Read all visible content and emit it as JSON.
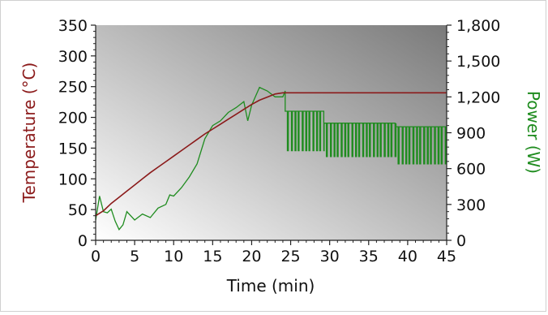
{
  "chart_data": {
    "type": "line",
    "xlabel": "Time (min)",
    "ylabel_left": "Temperature (°C)",
    "ylabel_right": "Power (W)",
    "xlim": [
      0,
      45
    ],
    "ylim_left": [
      0,
      350
    ],
    "ylim_right": [
      0,
      1800
    ],
    "x_ticks": [
      "0",
      "5",
      "10",
      "15",
      "20",
      "25",
      "30",
      "35",
      "40",
      "45"
    ],
    "y_left_ticks": [
      "0",
      "50",
      "100",
      "150",
      "200",
      "250",
      "300",
      "350"
    ],
    "y_right_ticks": [
      "0",
      "300",
      "600",
      "900",
      "1,200",
      "1,500",
      "1,800"
    ],
    "grid": false,
    "colors": {
      "temperature": "#8b1a1a",
      "power": "#1f8c1f",
      "background_light": "#ffffff",
      "background_dark": "#7a7a7a"
    },
    "series": [
      {
        "axis": "left",
        "x": [
          0,
          1,
          2,
          3,
          4,
          5,
          6,
          7,
          8,
          9,
          10,
          11,
          12,
          13,
          14,
          15,
          16,
          17,
          18,
          19,
          20,
          21,
          22,
          23,
          24,
          25,
          30,
          35,
          40,
          45
        ],
        "values": [
          40,
          48,
          60,
          70,
          80,
          90,
          100,
          110,
          119,
          128,
          137,
          146,
          155,
          164,
          173,
          181,
          189,
          197,
          205,
          213,
          221,
          228,
          233,
          238,
          240,
          240,
          240,
          240,
          240,
          240
        ]
      },
      {
        "axis": "right",
        "x": [
          0,
          0.5,
          1,
          1.5,
          2,
          2.5,
          3,
          3.5,
          4,
          5,
          6,
          7,
          8,
          9,
          9.5,
          10,
          11,
          12,
          13,
          14,
          15,
          16,
          17,
          18,
          19,
          19.5,
          20,
          21,
          22,
          23,
          24,
          24.3
        ],
        "values": [
          170,
          370,
          240,
          230,
          260,
          160,
          90,
          130,
          240,
          170,
          220,
          190,
          270,
          300,
          380,
          370,
          440,
          530,
          640,
          850,
          960,
          1000,
          1070,
          1110,
          1160,
          1000,
          1130,
          1280,
          1250,
          1200,
          1200,
          1250
        ]
      }
    ],
    "power_cycling": [
      {
        "x_start": 24.3,
        "x_end": 29.3,
        "high": 1080,
        "low": 750
      },
      {
        "x_start": 29.3,
        "x_end": 38.5,
        "high": 980,
        "low": 700
      },
      {
        "x_start": 38.5,
        "x_end": 45,
        "high": 950,
        "low": 640
      }
    ]
  }
}
